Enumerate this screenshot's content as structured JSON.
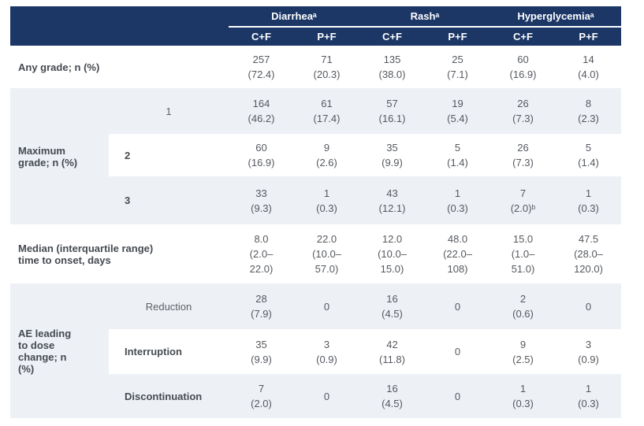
{
  "colors": {
    "header_bg": "#1c3766",
    "band_bg": "#edf0f5",
    "label_text": "#454a51",
    "data_text": "#55595f",
    "header_text": "#ffffff"
  },
  "table": {
    "header": {
      "groups": [
        "Diarrheaᵃ",
        "Rashᵃ",
        "Hyperglycemiaᵃ"
      ],
      "subcols": [
        "C+F",
        "P+F",
        "C+F",
        "P+F",
        "C+F",
        "P+F"
      ]
    },
    "rows": {
      "any_grade": {
        "label": "Any grade; n (%)",
        "cells": [
          "257\n(72.4)",
          "71\n(20.3)",
          "135\n(38.0)",
          "25\n(7.1)",
          "60\n(16.9)",
          "14\n(4.0)"
        ]
      },
      "max_grade": {
        "label": "Maximum grade; n (%)",
        "grades": [
          {
            "sub": "1",
            "cells": [
              "164\n(46.2)",
              "61\n(17.4)",
              "57\n(16.1)",
              "19\n(5.4)",
              "26\n(7.3)",
              "8\n(2.3)"
            ]
          },
          {
            "sub": "2",
            "cells": [
              "60\n(16.9)",
              "9\n(2.6)",
              "35\n(9.9)",
              "5\n(1.4)",
              "26\n(7.3)",
              "5\n(1.4)"
            ]
          },
          {
            "sub": "3",
            "cells": [
              "33\n(9.3)",
              "1\n(0.3)",
              "43\n(12.1)",
              "1\n(0.3)",
              "7\n(2.0)ᵇ",
              "1\n(0.3)"
            ]
          }
        ]
      },
      "median": {
        "label": "Median (interquartile range) time to onset, days",
        "cells": [
          "8.0\n(2.0–\n22.0)",
          "22.0\n(10.0–\n57.0)",
          "12.0\n(10.0–\n15.0)",
          "48.0\n(22.0–\n108)",
          "15.0\n(1.0–\n51.0)",
          "47.5\n(28.0–\n120.0)"
        ]
      },
      "ae_dose": {
        "label": "AE leading to dose change; n (%)",
        "subrows": [
          {
            "sub": "Reduction",
            "cells": [
              "28\n(7.9)",
              "0",
              "16\n(4.5)",
              "0",
              "2\n(0.6)",
              "0"
            ]
          },
          {
            "sub": "Interruption",
            "cells": [
              "35\n(9.9)",
              "3\n(0.9)",
              "42\n(11.8)",
              "0",
              "9\n(2.5)",
              "3\n(0.9)"
            ]
          },
          {
            "sub": "Discontinuation",
            "cells": [
              "7\n(2.0)",
              "0",
              "16\n(4.5)",
              "0",
              "1\n(0.3)",
              "1\n(0.3)"
            ]
          }
        ]
      }
    }
  }
}
